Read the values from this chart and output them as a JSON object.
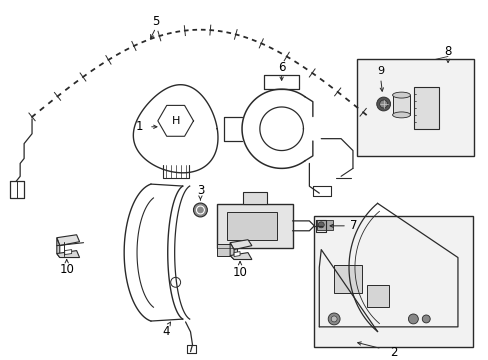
{
  "bg_color": "#ffffff",
  "lc": "#2a2a2a",
  "fig_w": 4.89,
  "fig_h": 3.6,
  "dpi": 100,
  "xlim": [
    0,
    489
  ],
  "ylim": [
    0,
    360
  ]
}
